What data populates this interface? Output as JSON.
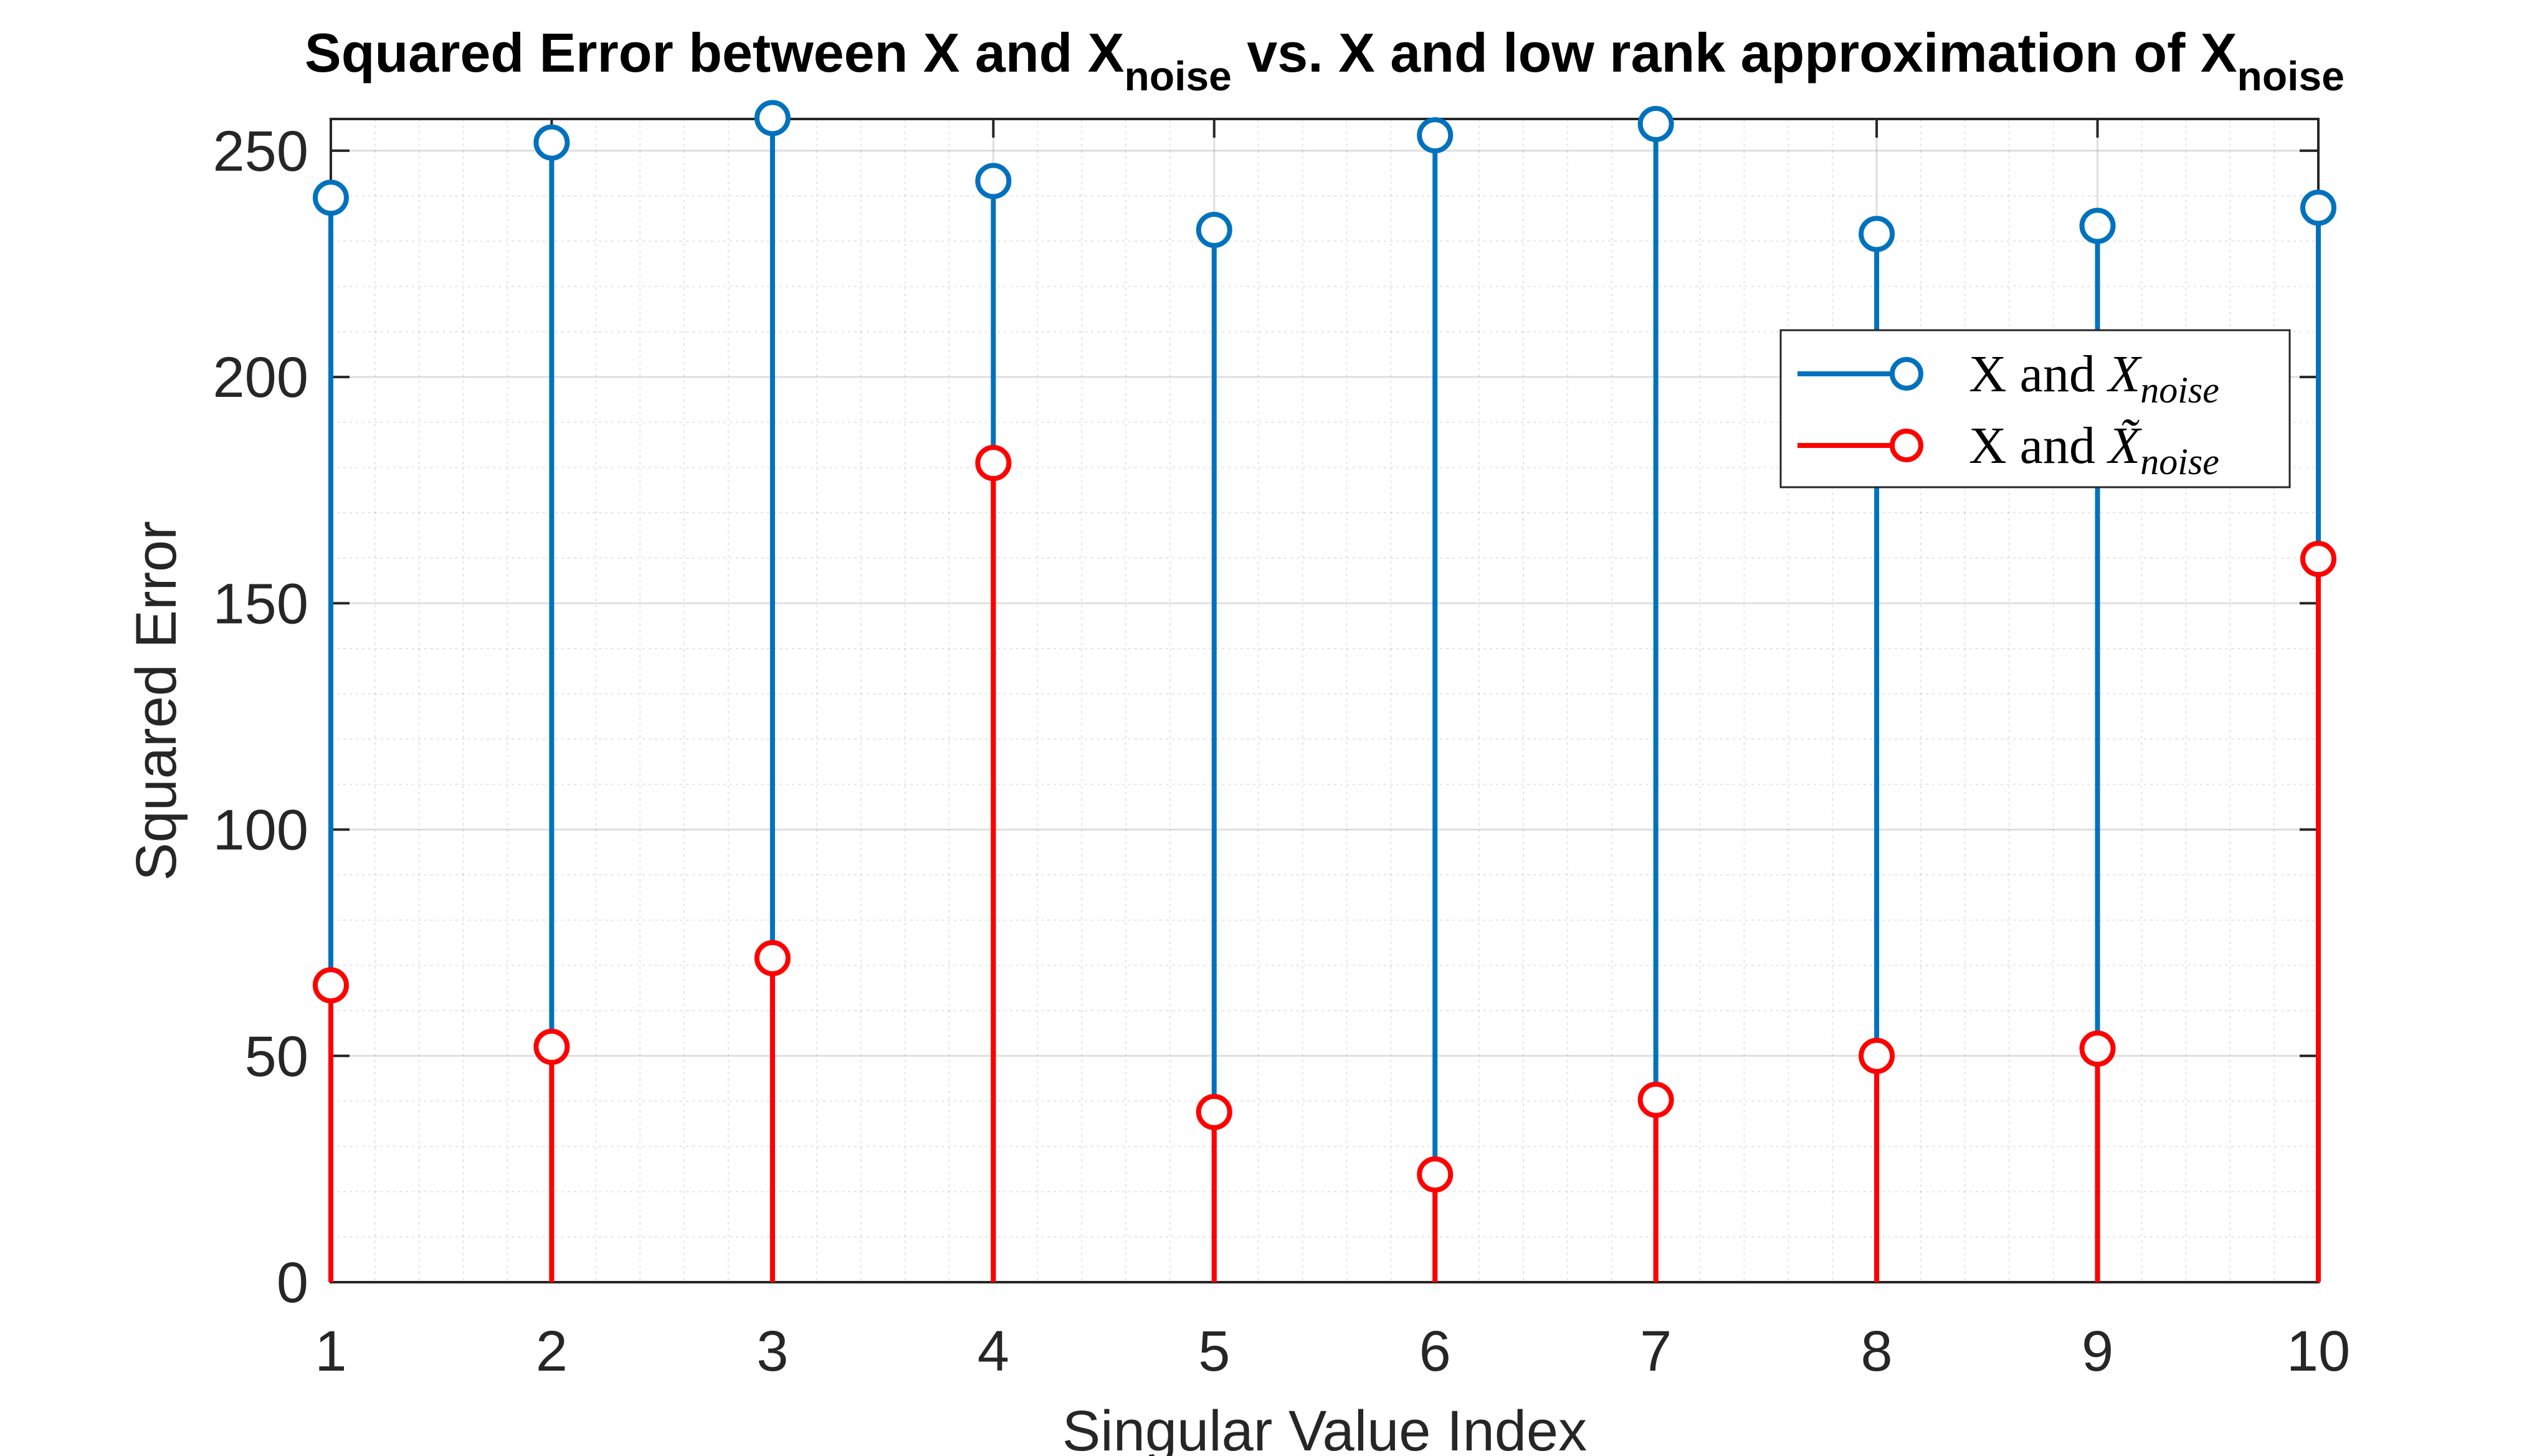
{
  "chart_data": {
    "type": "stem",
    "title": {
      "main": "Squared Error between X and X",
      "sub1": "noise",
      "mid": " vs. X and low rank approximation of X",
      "sub2": "noise"
    },
    "xlabel": "Singular Value Index",
    "ylabel": "Squared Error",
    "xlim": [
      1,
      10
    ],
    "ylim": [
      0,
      257
    ],
    "x": [
      1,
      2,
      3,
      4,
      5,
      6,
      7,
      8,
      9,
      10
    ],
    "xticks": [
      "1",
      "2",
      "3",
      "4",
      "5",
      "6",
      "7",
      "8",
      "9",
      "10"
    ],
    "yticks": [
      0,
      50,
      100,
      150,
      200,
      250
    ],
    "grid": true,
    "minor_grid": true,
    "legend_position": "upper-right",
    "series": [
      {
        "name": "X and X_noise",
        "legend": {
          "prefix": "X and ",
          "var": "X",
          "sub": "noise",
          "tilde": false
        },
        "color": "#0072BD",
        "values": [
          239.6,
          251.8,
          257.2,
          243.3,
          232.5,
          253.4,
          255.9,
          231.6,
          233.4,
          237.4
        ]
      },
      {
        "name": "X and X̃_noise",
        "legend": {
          "prefix": "X and ",
          "var": "X",
          "sub": "noise",
          "tilde": true
        },
        "color": "#FF0000",
        "values": [
          65.6,
          52.0,
          71.6,
          181.0,
          37.6,
          23.8,
          40.3,
          50.0,
          51.6,
          159.8
        ]
      }
    ]
  }
}
